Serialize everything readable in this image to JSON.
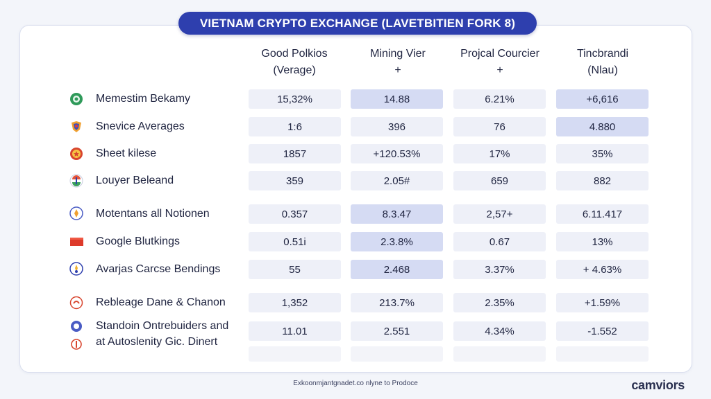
{
  "title": "VIETNAM CRYPTO EXCHANGE (LAVETBITIEN FORK 8)",
  "columns": [
    {
      "line1": "Good Polkios",
      "line2": "(Verage)"
    },
    {
      "line1": "Mining Vier",
      "line2": "+"
    },
    {
      "line1": "Projcal Courcier",
      "line2": "+"
    },
    {
      "line1": "Tincbrandi",
      "line2": "(Nlau)"
    }
  ],
  "rows": [
    {
      "icon": "green-circle-icon",
      "label": "Memestim Bekamy",
      "values": [
        "15,32%",
        "14.88",
        "6.21%",
        "+6,616"
      ]
    },
    {
      "icon": "colorful-badge-icon",
      "label": "Snevice Averages",
      "values": [
        "1:6",
        "396",
        "76",
        "4.880"
      ]
    },
    {
      "icon": "red-seal-icon",
      "label": "Sheet kilese",
      "values": [
        "1857",
        "+120.53%",
        "17%",
        "35%"
      ]
    },
    {
      "icon": "tricolor-icon",
      "label": "Louyer Beleand",
      "values": [
        "359",
        "2.05#",
        "659",
        "882"
      ]
    },
    {
      "icon": "coin-icon",
      "label": "Motentans all Notionen",
      "values": [
        "0.357",
        "8.3.47",
        "2,57+",
        "6.11.417"
      ]
    },
    {
      "icon": "red-flag-icon",
      "label": "Google Blutkings",
      "values": [
        "0.51i",
        "2.3.8%",
        "0.67",
        "13%"
      ]
    },
    {
      "icon": "emblem-icon",
      "label": "Avarjas Carcse Bendings",
      "values": [
        "55",
        "2.468",
        "3.37%",
        "+ 4.63%"
      ]
    },
    {
      "icon": "red-circle-icon",
      "label": "Rebleage Dane & Chanon",
      "values": [
        "1,352",
        "213.7%",
        "2.35%",
        "+1.59%"
      ]
    },
    {
      "icon": "blue-dot-icon",
      "label": "Standoin Ontrebuiders and",
      "label2": "at Autoslenity Gic. Dinert",
      "values": [
        "11.01",
        "2.551",
        "4.34%",
        "-1.552"
      ]
    }
  ],
  "footer": "Exkoonmjantgnadet.co nlyne to Prodoce",
  "brand": "camviors"
}
